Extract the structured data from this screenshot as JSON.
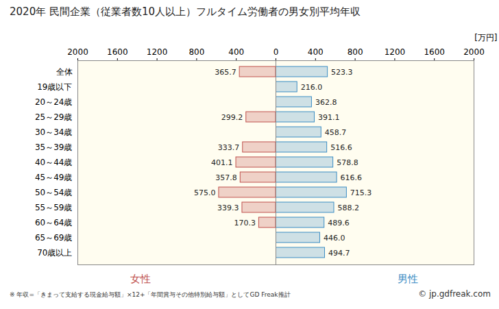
{
  "chart_data": {
    "type": "bar",
    "orientation": "horizontal",
    "title": "2020年 民間企業（従業者数10人以上）フルタイム労働者の男女別平均年収",
    "xlabel": "[万円]",
    "categories": [
      "全体",
      "19歳以下",
      "20～24歳",
      "25～29歳",
      "30～34歳",
      "35～39歳",
      "40～44歳",
      "45～49歳",
      "50～54歳",
      "55～59歳",
      "60～64歳",
      "65～69歳",
      "70歳以上"
    ],
    "series": [
      {
        "name": "女性",
        "color": "#c0504d",
        "values": [
          365.7,
          null,
          null,
          299.2,
          null,
          333.7,
          401.1,
          357.8,
          575.0,
          339.3,
          170.3,
          null,
          null
        ],
        "value_labels": [
          "365.7",
          null,
          null,
          "299.2",
          null,
          "333.7",
          "401.1",
          "357.8",
          "575.0",
          "339.3",
          "170.3",
          null,
          null
        ]
      },
      {
        "name": "男性",
        "color": "#3b8dc4",
        "values": [
          523.3,
          216.0,
          362.8,
          391.1,
          458.7,
          516.6,
          578.8,
          616.6,
          715.3,
          588.2,
          489.6,
          446.0,
          494.7
        ],
        "value_labels": [
          "523.3",
          "216.0",
          "362.8",
          "391.1",
          "458.7",
          "516.6",
          "578.8",
          "616.6",
          "715.3",
          "588.2",
          "489.6",
          "446.0",
          "494.7"
        ]
      }
    ],
    "xlim": [
      0,
      2000
    ],
    "xticks": [
      0,
      400,
      800,
      1200,
      1600,
      2000
    ],
    "grid": false,
    "data_labels": true,
    "annotations": [
      "※ 年収=「きまって支給する現金給与額」×12+「年間賞与その他特別給与額」としてGD Freak推計",
      "© jp.gdfreak.com"
    ]
  }
}
